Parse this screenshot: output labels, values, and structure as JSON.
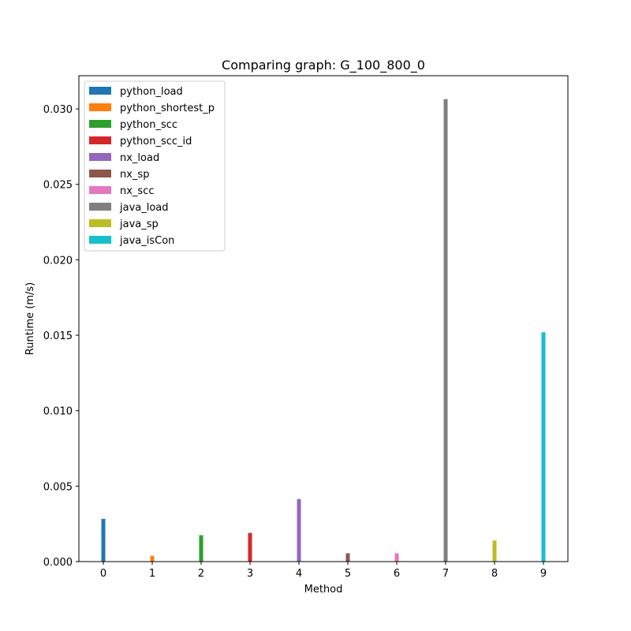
{
  "chart_data": {
    "type": "bar",
    "title": "Comparing graph: G_100_800_0",
    "xlabel": "Method",
    "ylabel": "Runtime (m/s)",
    "xlim": [
      -0.5,
      9.5
    ],
    "ylim": [
      0,
      0.0322
    ],
    "grid": false,
    "legend_position": "top-left",
    "x_ticks": [
      "0",
      "1",
      "2",
      "3",
      "4",
      "5",
      "6",
      "7",
      "8",
      "9"
    ],
    "y_ticks": [
      {
        "value": 0.0,
        "label": "0.000"
      },
      {
        "value": 0.005,
        "label": "0.005"
      },
      {
        "value": 0.01,
        "label": "0.010"
      },
      {
        "value": 0.015,
        "label": "0.015"
      },
      {
        "value": 0.02,
        "label": "0.020"
      },
      {
        "value": 0.025,
        "label": "0.025"
      },
      {
        "value": 0.03,
        "label": "0.030"
      }
    ],
    "series": [
      {
        "name": "python_load",
        "x": 0,
        "value": 0.00283,
        "color": "#1f77b4"
      },
      {
        "name": "python_shortest_p",
        "x": 1,
        "value": 0.00038,
        "color": "#ff7f0e"
      },
      {
        "name": "python_scc",
        "x": 2,
        "value": 0.00175,
        "color": "#2ca02c"
      },
      {
        "name": "python_scc_id",
        "x": 3,
        "value": 0.0019,
        "color": "#d62728"
      },
      {
        "name": "nx_load",
        "x": 4,
        "value": 0.00415,
        "color": "#9467bd"
      },
      {
        "name": "nx_sp",
        "x": 5,
        "value": 0.00055,
        "color": "#8c564b"
      },
      {
        "name": "nx_scc",
        "x": 6,
        "value": 0.00055,
        "color": "#e377c2"
      },
      {
        "name": "java_load",
        "x": 7,
        "value": 0.03065,
        "color": "#7f7f7f"
      },
      {
        "name": "java_sp",
        "x": 8,
        "value": 0.0014,
        "color": "#bcbd22"
      },
      {
        "name": "java_isCon",
        "x": 9,
        "value": 0.0152,
        "color": "#17becf"
      }
    ]
  }
}
